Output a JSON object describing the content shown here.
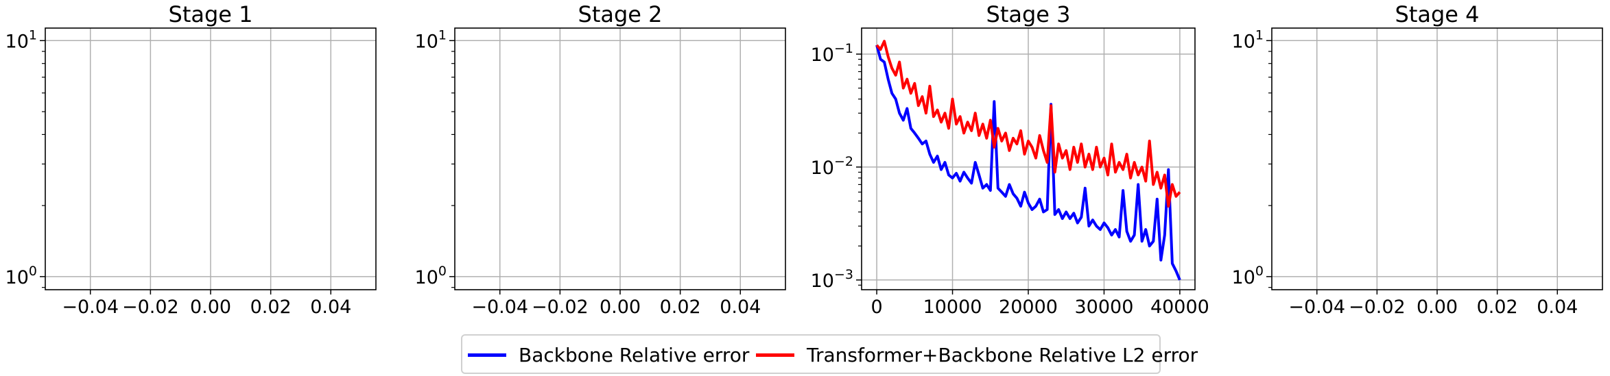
{
  "chart_data": [
    {
      "type": "line",
      "title": "Stage 1",
      "xlabel": "",
      "ylabel": "",
      "y_scale": "log",
      "grid": true,
      "xlim": [
        -0.055,
        0.055
      ],
      "ylim": [
        0.88,
        11.3
      ],
      "x_ticks": [
        -0.04,
        -0.02,
        0.0,
        0.02,
        0.04
      ],
      "x_tick_labels": [
        "−0.04",
        "−0.02",
        "0.00",
        "0.02",
        "0.04"
      ],
      "y_ticks": [
        1,
        10
      ],
      "y_tick_labels": [
        {
          "base": "10",
          "exp": "0"
        },
        {
          "base": "10",
          "exp": "1"
        }
      ],
      "series": []
    },
    {
      "type": "line",
      "title": "Stage 2",
      "xlabel": "",
      "ylabel": "",
      "y_scale": "log",
      "grid": true,
      "xlim": [
        -0.055,
        0.055
      ],
      "ylim": [
        0.88,
        11.3
      ],
      "x_ticks": [
        -0.04,
        -0.02,
        0.0,
        0.02,
        0.04
      ],
      "x_tick_labels": [
        "−0.04",
        "−0.02",
        "0.00",
        "0.02",
        "0.04"
      ],
      "y_ticks": [
        1,
        10
      ],
      "y_tick_labels": [
        {
          "base": "10",
          "exp": "0"
        },
        {
          "base": "10",
          "exp": "1"
        }
      ],
      "series": []
    },
    {
      "type": "line",
      "title": "Stage 3",
      "xlabel": "",
      "ylabel": "",
      "y_scale": "log",
      "grid": true,
      "xlim": [
        -2000,
        42000
      ],
      "ylim": [
        0.00082,
        0.17
      ],
      "x_ticks": [
        0,
        10000,
        20000,
        30000,
        40000
      ],
      "x_tick_labels": [
        "0",
        "10000",
        "20000",
        "30000",
        "40000"
      ],
      "y_ticks": [
        0.001,
        0.01,
        0.1
      ],
      "y_tick_labels": [
        {
          "base": "10",
          "exp": "−3"
        },
        {
          "base": "10",
          "exp": "−2"
        },
        {
          "base": "10",
          "exp": "−1"
        }
      ],
      "series": [
        {
          "name": "Backbone Relative error",
          "color": "#0000ff",
          "x": [
            0,
            500,
            1000,
            1500,
            2000,
            2500,
            3000,
            3500,
            4000,
            4500,
            5000,
            5500,
            6000,
            6500,
            7000,
            7500,
            8000,
            8500,
            9000,
            9500,
            10000,
            10500,
            11000,
            11500,
            12000,
            12500,
            13000,
            13500,
            14000,
            14500,
            15000,
            15500,
            16000,
            16500,
            17000,
            17500,
            18000,
            18500,
            19000,
            19500,
            20000,
            20500,
            21000,
            21500,
            22000,
            22500,
            23000,
            23500,
            24000,
            24500,
            25000,
            25500,
            26000,
            26500,
            27000,
            27500,
            28000,
            28500,
            29000,
            29500,
            30000,
            30500,
            31000,
            31500,
            32000,
            32500,
            33000,
            33500,
            34000,
            34500,
            35000,
            35500,
            36000,
            36500,
            37000,
            37500,
            38000,
            38500,
            39000,
            39500,
            40000
          ],
          "y": [
            0.12,
            0.09,
            0.085,
            0.06,
            0.045,
            0.04,
            0.03,
            0.026,
            0.033,
            0.022,
            0.02,
            0.018,
            0.016,
            0.017,
            0.013,
            0.011,
            0.0125,
            0.0095,
            0.011,
            0.0085,
            0.008,
            0.0088,
            0.0075,
            0.009,
            0.008,
            0.0072,
            0.011,
            0.0085,
            0.0065,
            0.007,
            0.0062,
            0.038,
            0.0065,
            0.006,
            0.0055,
            0.007,
            0.0058,
            0.0053,
            0.0045,
            0.006,
            0.0048,
            0.0042,
            0.0045,
            0.0052,
            0.004,
            0.0042,
            0.036,
            0.0038,
            0.0042,
            0.0035,
            0.004,
            0.0035,
            0.0039,
            0.0032,
            0.0036,
            0.0065,
            0.003,
            0.0034,
            0.003,
            0.0028,
            0.0032,
            0.0029,
            0.0025,
            0.0028,
            0.0024,
            0.0062,
            0.0027,
            0.0022,
            0.0025,
            0.007,
            0.0022,
            0.0028,
            0.002,
            0.0022,
            0.0052,
            0.0015,
            0.0025,
            0.0095,
            0.0014,
            0.0012,
            0.001
          ]
        },
        {
          "name": "Transformer+Backbone Relative L2 error",
          "color": "#ff0000",
          "x": [
            0,
            500,
            1000,
            1500,
            2000,
            2500,
            3000,
            3500,
            4000,
            4500,
            5000,
            5500,
            6000,
            6500,
            7000,
            7500,
            8000,
            8500,
            9000,
            9500,
            10000,
            10500,
            11000,
            11500,
            12000,
            12500,
            13000,
            13500,
            14000,
            14500,
            15000,
            15500,
            16000,
            16500,
            17000,
            17500,
            18000,
            18500,
            19000,
            19500,
            20000,
            20500,
            21000,
            21500,
            22000,
            22500,
            23000,
            23500,
            24000,
            24500,
            25000,
            25500,
            26000,
            26500,
            27000,
            27500,
            28000,
            28500,
            29000,
            29500,
            30000,
            30500,
            31000,
            31500,
            32000,
            32500,
            33000,
            33500,
            34000,
            34500,
            35000,
            35500,
            36000,
            36500,
            37000,
            37500,
            38000,
            38500,
            39000,
            39500,
            40000
          ],
          "y": [
            0.12,
            0.11,
            0.13,
            0.095,
            0.075,
            0.065,
            0.085,
            0.05,
            0.06,
            0.045,
            0.055,
            0.035,
            0.042,
            0.03,
            0.052,
            0.028,
            0.032,
            0.025,
            0.03,
            0.022,
            0.04,
            0.024,
            0.028,
            0.02,
            0.025,
            0.021,
            0.03,
            0.019,
            0.024,
            0.018,
            0.026,
            0.015,
            0.022,
            0.017,
            0.02,
            0.014,
            0.018,
            0.016,
            0.021,
            0.013,
            0.017,
            0.015,
            0.012,
            0.019,
            0.014,
            0.011,
            0.035,
            0.009,
            0.016,
            0.012,
            0.014,
            0.0095,
            0.015,
            0.011,
            0.016,
            0.01,
            0.013,
            0.0095,
            0.015,
            0.01,
            0.012,
            0.0085,
            0.016,
            0.009,
            0.011,
            0.0095,
            0.013,
            0.008,
            0.011,
            0.0085,
            0.01,
            0.0075,
            0.017,
            0.007,
            0.009,
            0.0065,
            0.0085,
            0.0045,
            0.007,
            0.0055,
            0.006
          ]
        }
      ]
    },
    {
      "type": "line",
      "title": "Stage 4",
      "xlabel": "",
      "ylabel": "",
      "y_scale": "log",
      "grid": true,
      "xlim": [
        -0.055,
        0.055
      ],
      "ylim": [
        0.88,
        11.3
      ],
      "x_ticks": [
        -0.04,
        -0.02,
        0.0,
        0.02,
        0.04
      ],
      "x_tick_labels": [
        "−0.04",
        "−0.02",
        "0.00",
        "0.02",
        "0.04"
      ],
      "y_ticks": [
        1,
        10
      ],
      "y_tick_labels": [
        {
          "base": "10",
          "exp": "0"
        },
        {
          "base": "10",
          "exp": "1"
        }
      ],
      "series": []
    }
  ],
  "legend": {
    "placement": "bottom-center",
    "items": [
      {
        "label": "Backbone Relative error",
        "color": "#0000ff"
      },
      {
        "label": "Transformer+Backbone Relative L2 error",
        "color": "#ff0000"
      }
    ]
  }
}
